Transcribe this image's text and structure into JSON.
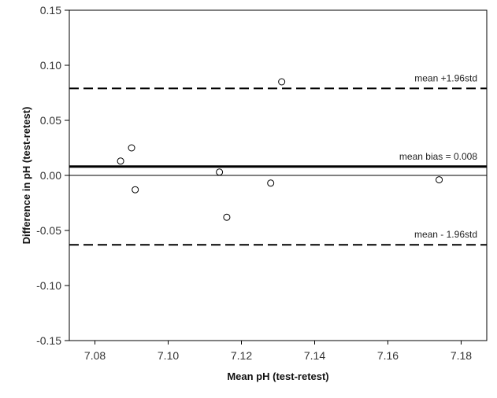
{
  "chart_data": {
    "type": "scatter",
    "title": "",
    "xlabel": "Mean pH (test-retest)",
    "ylabel": "Difference in pH (test-retest)",
    "xlim": [
      7.073,
      7.187
    ],
    "ylim": [
      -0.15,
      0.15
    ],
    "x_ticks": [
      7.08,
      7.1,
      7.12,
      7.14,
      7.16,
      7.18
    ],
    "x_tick_labels": [
      "7.08",
      "7.10",
      "7.12",
      "7.14",
      "7.16",
      "7.18"
    ],
    "y_ticks": [
      0.15,
      0.1,
      0.05,
      0.0,
      -0.05,
      -0.1,
      -0.15
    ],
    "y_tick_labels": [
      "0.15",
      "0.10",
      "0.05",
      "0.00",
      "-0.05",
      "-0.10",
      "-0.15"
    ],
    "grid": false,
    "marker": "open-circle",
    "points": [
      {
        "x": 7.087,
        "y": 0.013
      },
      {
        "x": 7.09,
        "y": 0.025
      },
      {
        "x": 7.091,
        "y": -0.013
      },
      {
        "x": 7.114,
        "y": 0.003
      },
      {
        "x": 7.116,
        "y": -0.038
      },
      {
        "x": 7.128,
        "y": -0.007
      },
      {
        "x": 7.131,
        "y": 0.085
      },
      {
        "x": 7.174,
        "y": -0.004
      }
    ],
    "reference_lines": [
      {
        "y": 0.079,
        "style": "dashed",
        "label": "mean +1.96std"
      },
      {
        "y": 0.008,
        "style": "solid-thick",
        "label": "mean bias = 0.008"
      },
      {
        "y": -0.063,
        "style": "dashed",
        "label": "mean - 1.96std"
      },
      {
        "y": 0.0,
        "style": "solid-thin",
        "label": ""
      }
    ]
  }
}
